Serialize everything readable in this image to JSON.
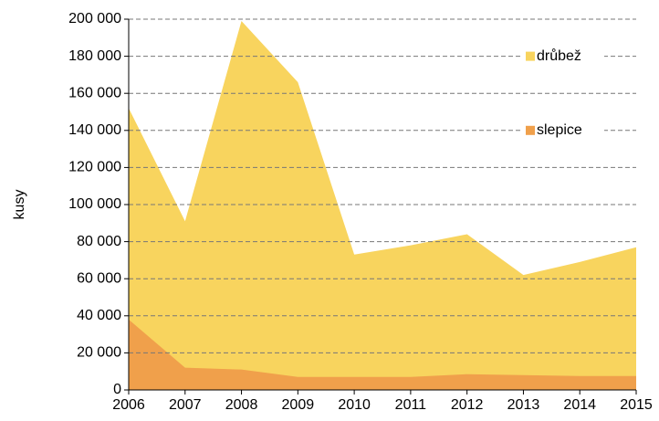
{
  "chart_data": {
    "type": "area",
    "y_label": "kusy",
    "categories": [
      "2006",
      "2007",
      "2008",
      "2009",
      "2010",
      "2011",
      "2012",
      "2013",
      "2014",
      "2015"
    ],
    "series": [
      {
        "name": "drůbež",
        "color": "#f8d45e",
        "values": [
          152000,
          91000,
          199000,
          166000,
          73000,
          78000,
          84000,
          62000,
          69000,
          77000
        ]
      },
      {
        "name": "slepice",
        "color": "#f0a04b",
        "values": [
          38000,
          12000,
          11000,
          7000,
          7000,
          7000,
          8500,
          8000,
          7500,
          7500
        ]
      }
    ],
    "ylim": [
      0,
      200000
    ],
    "yticks": [
      {
        "value": 0,
        "label": "0"
      },
      {
        "value": 20000,
        "label": "20 000"
      },
      {
        "value": 40000,
        "label": "40 000"
      },
      {
        "value": 60000,
        "label": "60 000"
      },
      {
        "value": 80000,
        "label": "80 000"
      },
      {
        "value": 100000,
        "label": "100 000"
      },
      {
        "value": 120000,
        "label": "120 000"
      },
      {
        "value": 140000,
        "label": "140 000"
      },
      {
        "value": 160000,
        "label": "160 000"
      },
      {
        "value": 180000,
        "label": "180 000"
      },
      {
        "value": 200000,
        "label": "200 000"
      }
    ],
    "grid": true,
    "legend": "top-right"
  }
}
